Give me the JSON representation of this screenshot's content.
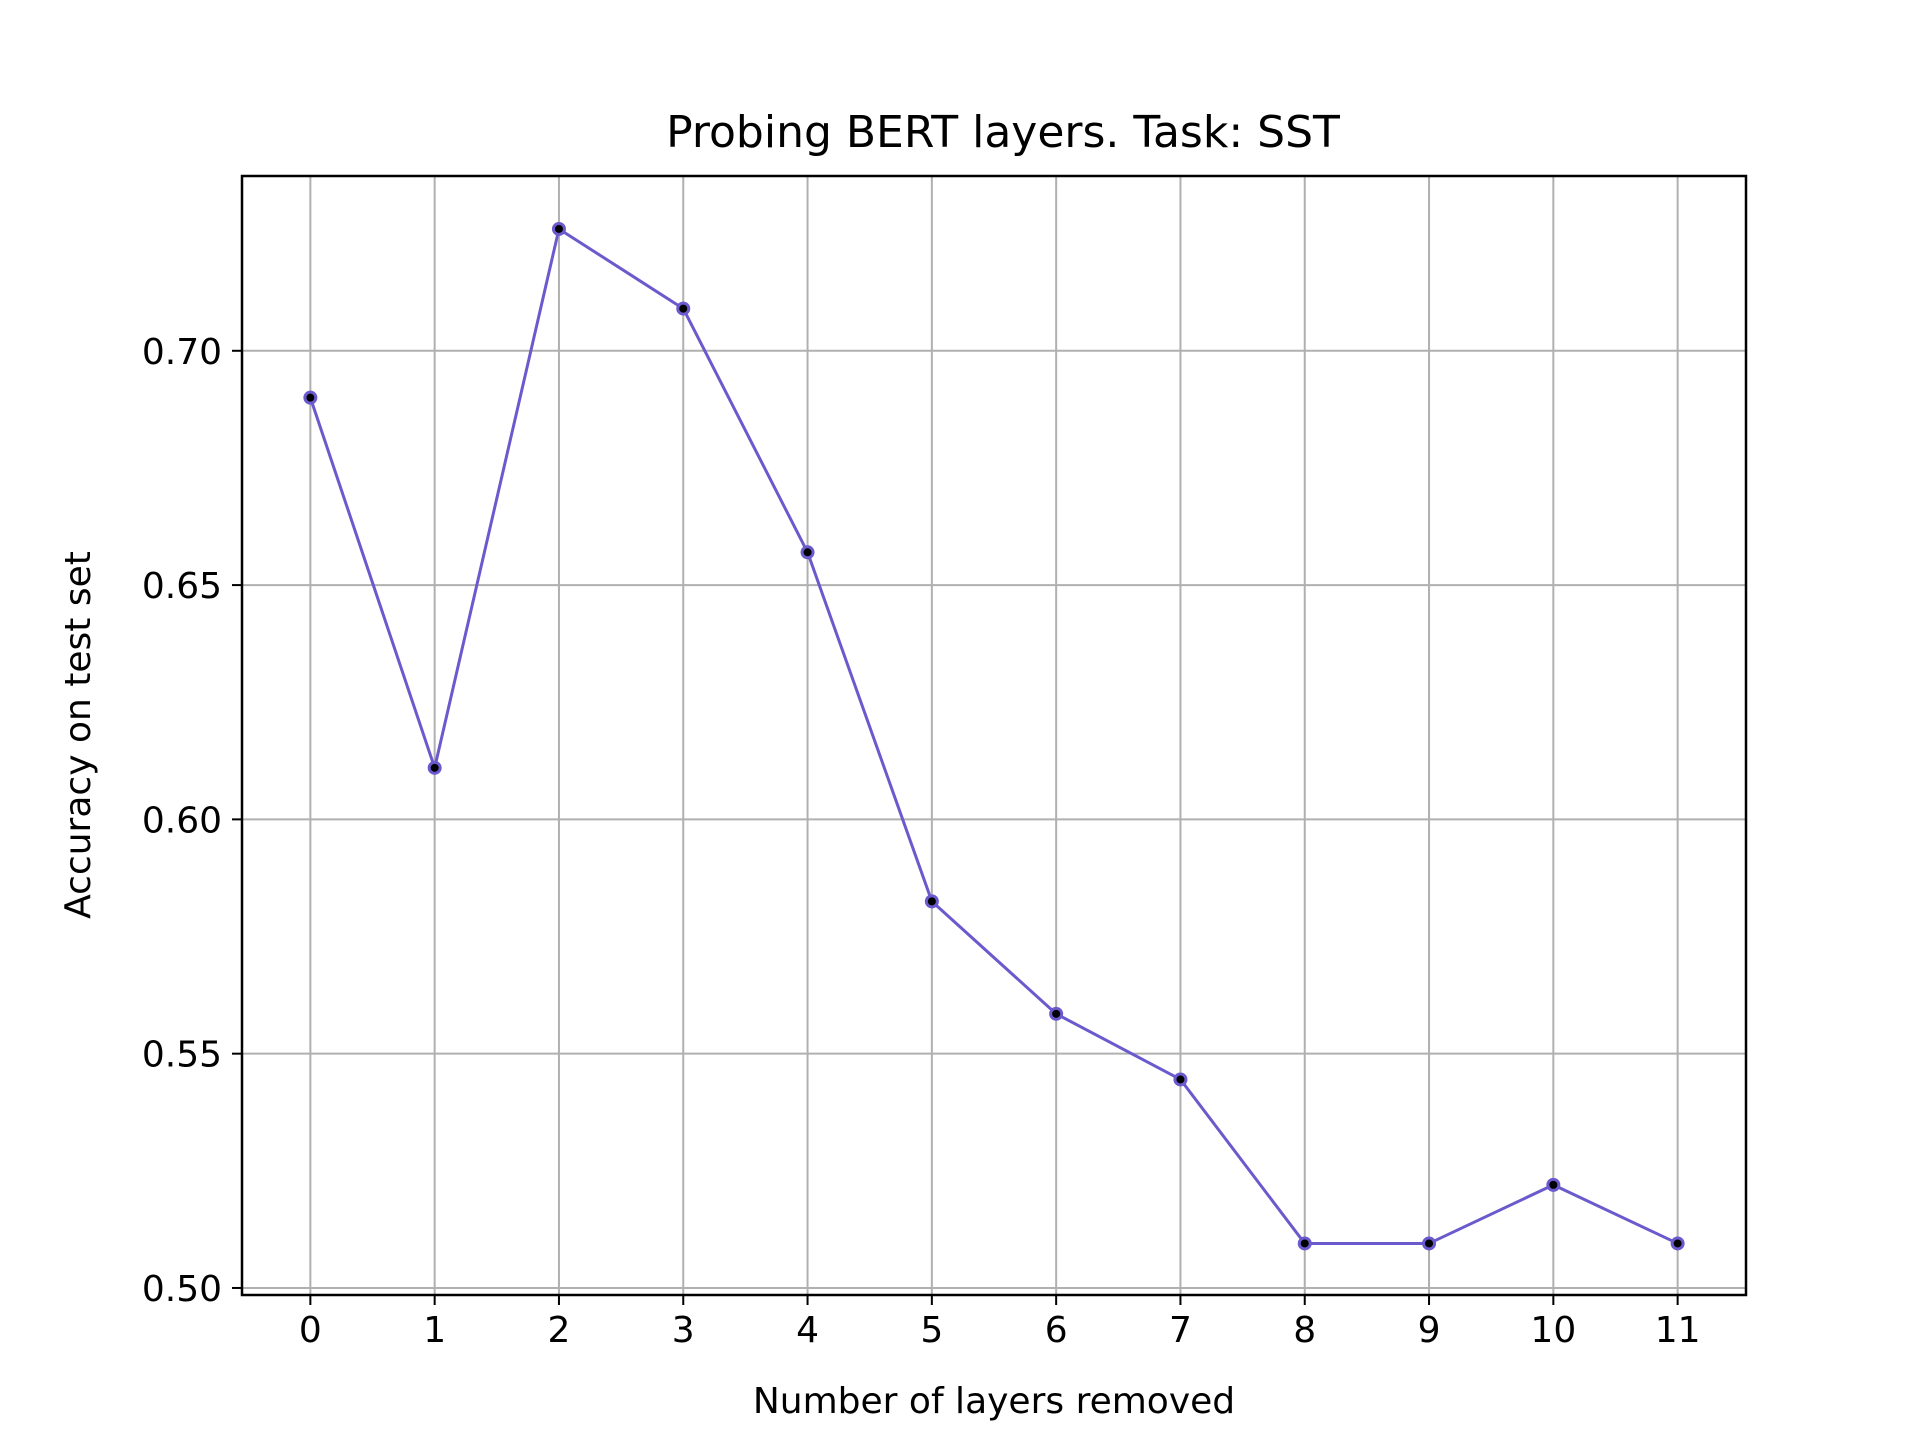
{
  "chart_data": {
    "type": "line",
    "title": "Probing BERT layers. Task: SST",
    "xlabel": "Number of layers removed",
    "ylabel": "Accuracy on test set",
    "x": [
      0,
      1,
      2,
      3,
      4,
      5,
      6,
      7,
      8,
      9,
      10,
      11
    ],
    "x_tick_labels": [
      "0",
      "1",
      "2",
      "3",
      "4",
      "5",
      "6",
      "7",
      "8",
      "9",
      "10",
      "11"
    ],
    "y_ticks": [
      0.5,
      0.55,
      0.6,
      0.65,
      0.7
    ],
    "y_tick_labels": [
      "0.50",
      "0.55",
      "0.60",
      "0.65",
      "0.70"
    ],
    "xlim": [
      -0.55,
      11.55
    ],
    "ylim": [
      0.4985,
      0.7373
    ],
    "grid": true,
    "legend": "none",
    "series": [
      {
        "name": "",
        "color": "#6a5acd",
        "marker_color": "#000000",
        "values": [
          0.69,
          0.611,
          0.726,
          0.709,
          0.657,
          0.5825,
          0.5585,
          0.5445,
          0.5095,
          0.5095,
          0.522,
          0.5095
        ]
      }
    ]
  }
}
